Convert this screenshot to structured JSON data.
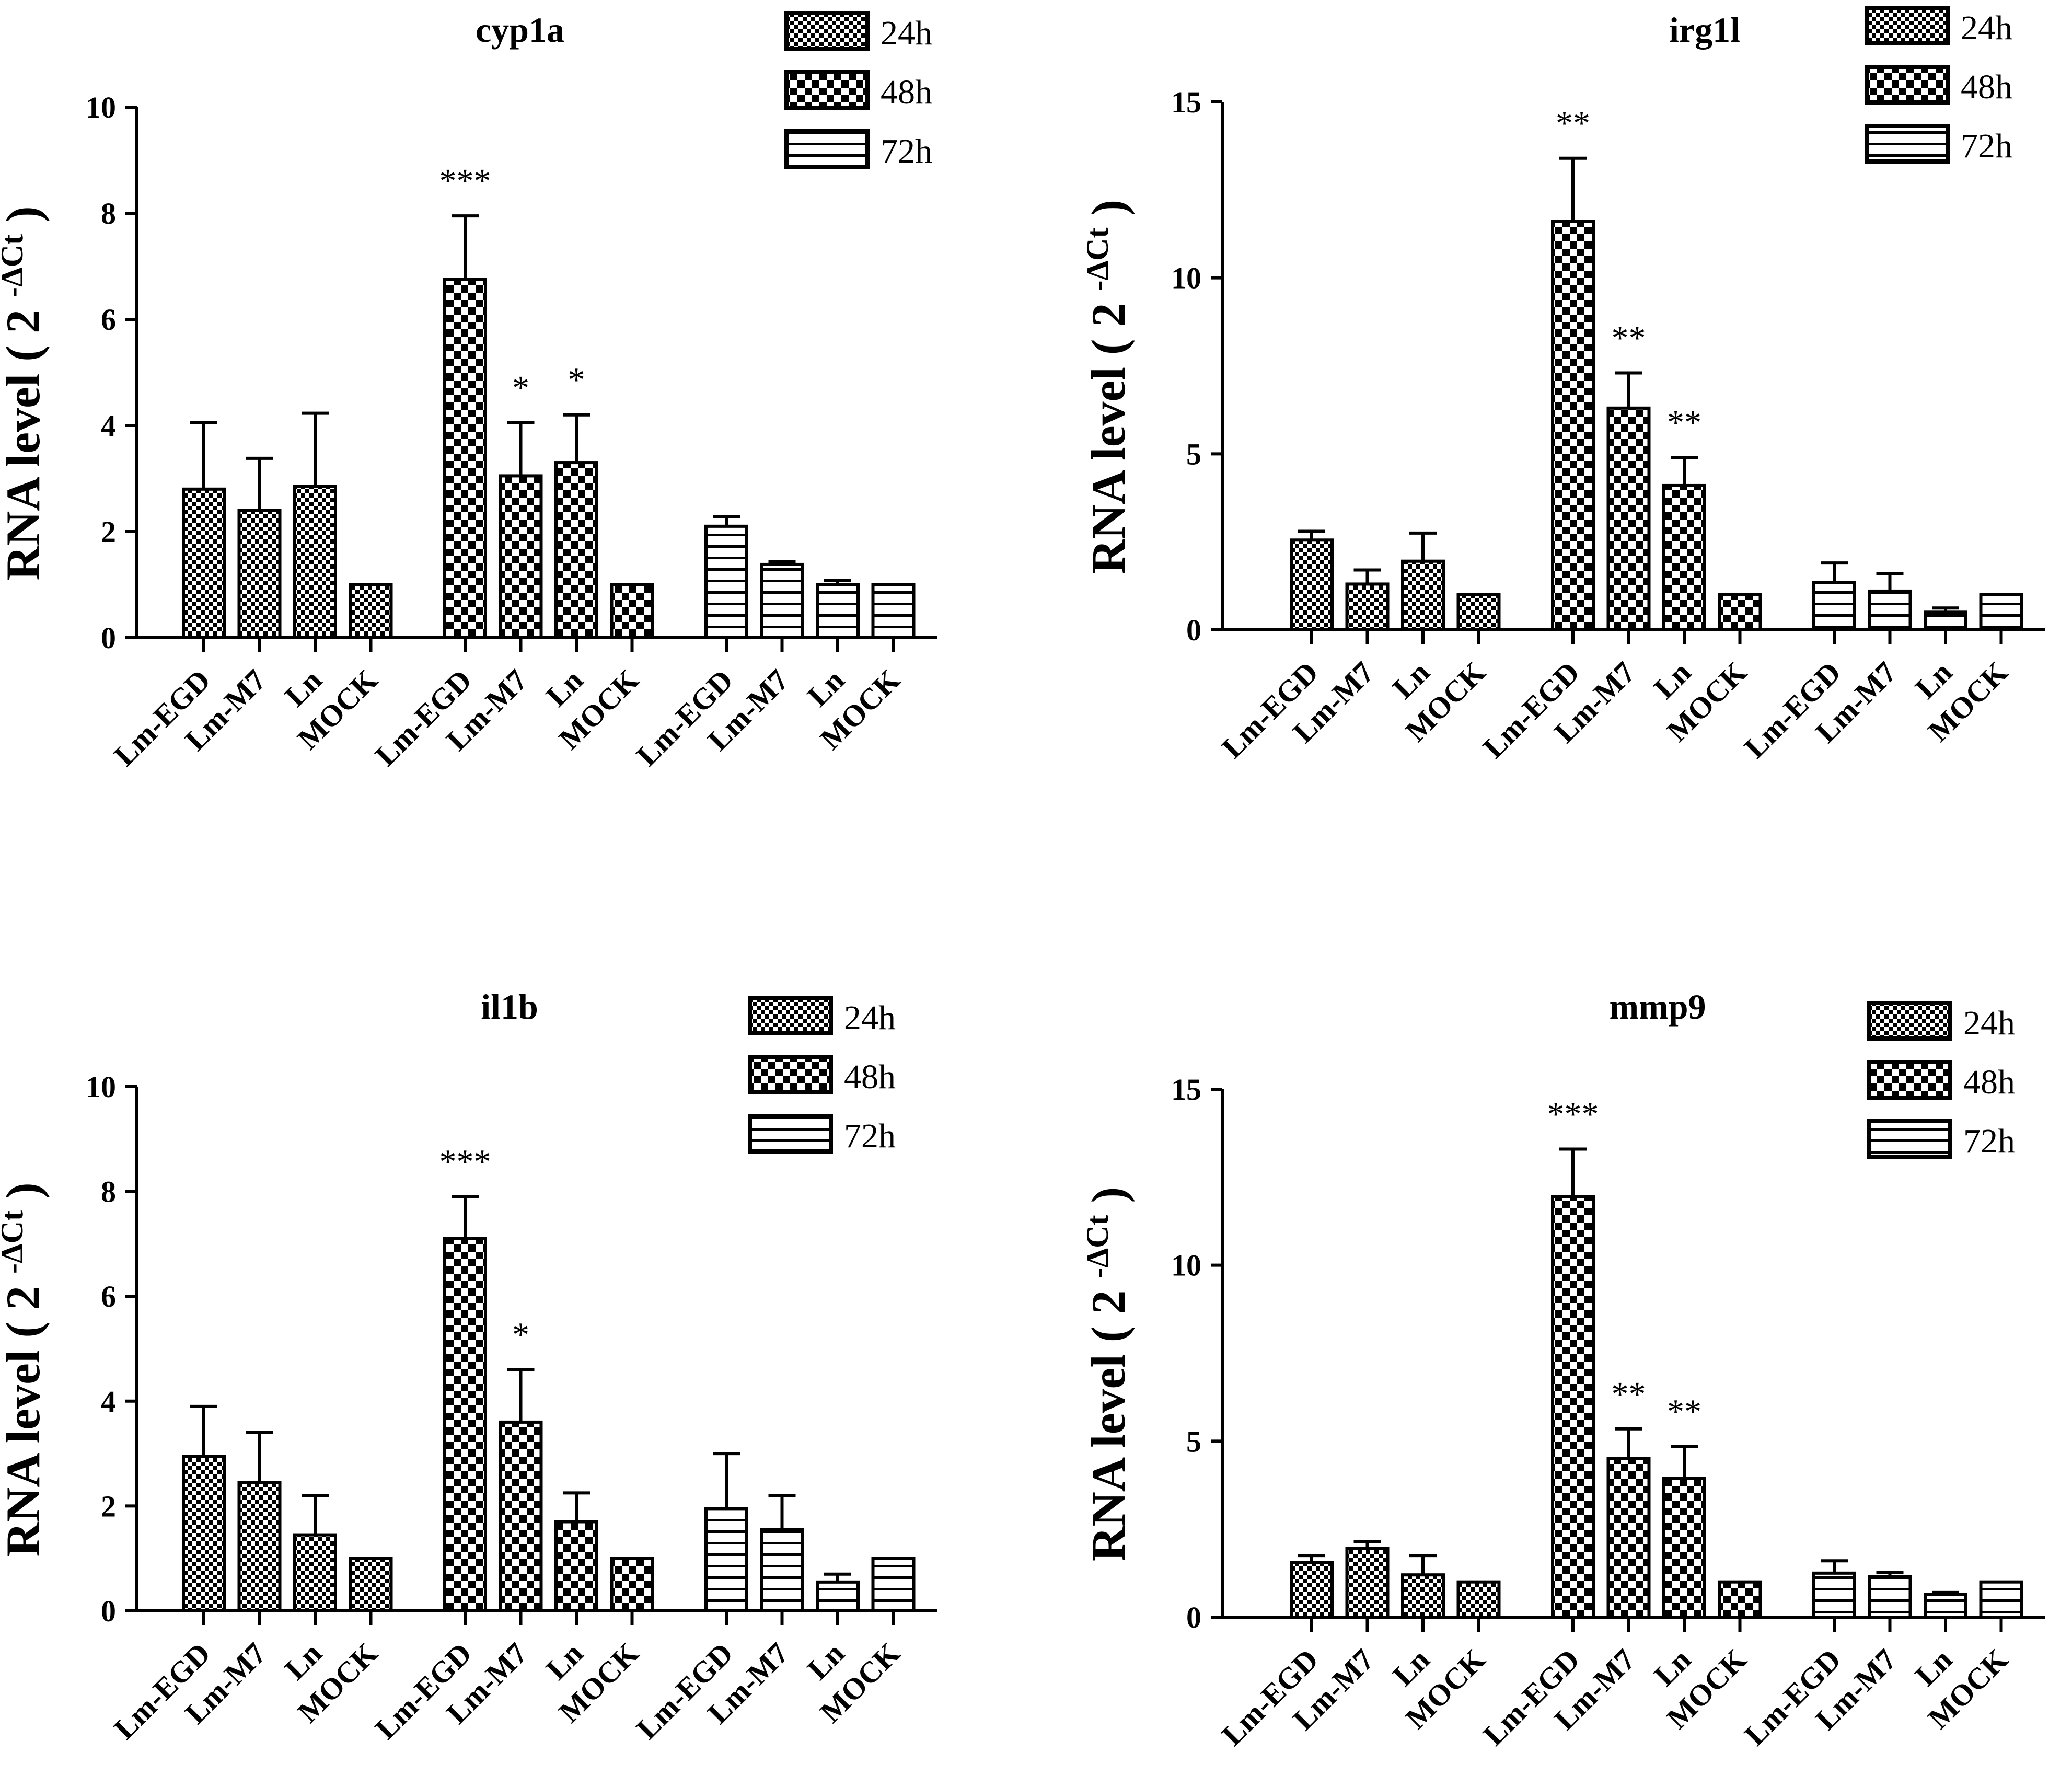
{
  "chart_data": [
    {
      "type": "bar",
      "title": "cyp1a",
      "ylabel": "RNA level ( 2",
      "ylabel_sup": "-ΔCt",
      "ylabel_close": ")",
      "ylim": [
        0,
        10
      ],
      "yticks": [
        0,
        2,
        4,
        6,
        8,
        10
      ],
      "categories": [
        "Lm-EGD",
        "Lm-M7",
        "Ln",
        "MOCK"
      ],
      "series": [
        {
          "name": "24h",
          "values": [
            2.8,
            2.4,
            2.85,
            1.0
          ],
          "errors": [
            1.25,
            0.98,
            1.38,
            0.0
          ],
          "sig": [
            "",
            "",
            "",
            ""
          ]
        },
        {
          "name": "48h",
          "values": [
            6.75,
            3.05,
            3.3,
            1.0
          ],
          "errors": [
            1.2,
            1.0,
            0.9,
            0.0
          ],
          "sig": [
            "***",
            "*",
            "*",
            ""
          ]
        },
        {
          "name": "72h",
          "values": [
            2.1,
            1.38,
            1.0,
            1.0
          ],
          "errors": [
            0.18,
            0.05,
            0.08,
            0.0
          ],
          "sig": [
            "",
            "",
            "",
            ""
          ]
        }
      ],
      "legend": [
        "24h",
        "48h",
        "72h"
      ]
    },
    {
      "type": "bar",
      "title": "irg1l",
      "ylabel": "RNA level ( 2",
      "ylabel_sup": "-ΔCt",
      "ylabel_close": ")",
      "ylim": [
        0,
        15
      ],
      "yticks": [
        0,
        5,
        10,
        15
      ],
      "categories": [
        "Lm-EGD",
        "Lm-M7",
        "Ln",
        "MOCK"
      ],
      "series": [
        {
          "name": "24h",
          "values": [
            2.55,
            1.3,
            1.95,
            1.0
          ],
          "errors": [
            0.25,
            0.4,
            0.8,
            0.0
          ],
          "sig": [
            "",
            "",
            "",
            ""
          ]
        },
        {
          "name": "48h",
          "values": [
            11.6,
            6.3,
            4.1,
            1.0
          ],
          "errors": [
            1.8,
            1.0,
            0.8,
            0.0
          ],
          "sig": [
            "**",
            "**",
            "**",
            ""
          ]
        },
        {
          "name": "72h",
          "values": [
            1.35,
            1.1,
            0.5,
            1.0
          ],
          "errors": [
            0.55,
            0.5,
            0.12,
            0.0
          ],
          "sig": [
            "",
            "",
            "",
            ""
          ]
        }
      ],
      "legend": [
        "24h",
        "48h",
        "72h"
      ]
    },
    {
      "type": "bar",
      "title": "il1b",
      "ylabel": "RNA level ( 2",
      "ylabel_sup": "-ΔCt",
      "ylabel_close": ")",
      "ylim": [
        0,
        10
      ],
      "yticks": [
        0,
        2,
        4,
        6,
        8,
        10
      ],
      "categories": [
        "Lm-EGD",
        "Lm-M7",
        "Ln",
        "MOCK"
      ],
      "series": [
        {
          "name": "24h",
          "values": [
            2.95,
            2.45,
            1.45,
            1.0
          ],
          "errors": [
            0.95,
            0.95,
            0.75,
            0.0
          ],
          "sig": [
            "",
            "",
            "",
            ""
          ]
        },
        {
          "name": "48h",
          "values": [
            7.1,
            3.6,
            1.7,
            1.0
          ],
          "errors": [
            0.8,
            1.0,
            0.55,
            0.0
          ],
          "sig": [
            "***",
            "*",
            "",
            ""
          ]
        },
        {
          "name": "72h",
          "values": [
            1.95,
            1.55,
            0.55,
            1.0
          ],
          "errors": [
            1.05,
            0.65,
            0.15,
            0.0
          ],
          "sig": [
            "",
            "",
            "",
            ""
          ]
        }
      ],
      "legend": [
        "24h",
        "48h",
        "72h"
      ]
    },
    {
      "type": "bar",
      "title": "mmp9",
      "ylabel": "RNA level ( 2",
      "ylabel_sup": "-ΔCt",
      "ylabel_close": ")",
      "ylim": [
        0,
        15
      ],
      "yticks": [
        0,
        5,
        10,
        15
      ],
      "categories": [
        "Lm-EGD",
        "Lm-M7",
        "Ln",
        "MOCK"
      ],
      "series": [
        {
          "name": "24h",
          "values": [
            1.55,
            1.95,
            1.2,
            1.0
          ],
          "errors": [
            0.2,
            0.2,
            0.55,
            0.0
          ],
          "sig": [
            "",
            "",
            "",
            ""
          ]
        },
        {
          "name": "48h",
          "values": [
            11.95,
            4.5,
            3.95,
            1.0
          ],
          "errors": [
            1.35,
            0.85,
            0.9,
            0.0
          ],
          "sig": [
            "***",
            "**",
            "**",
            ""
          ]
        },
        {
          "name": "72h",
          "values": [
            1.25,
            1.15,
            0.65,
            1.0
          ],
          "errors": [
            0.35,
            0.12,
            0.05,
            0.0
          ],
          "sig": [
            "",
            "",
            "",
            ""
          ]
        }
      ],
      "legend": [
        "24h",
        "48h",
        "72h"
      ]
    }
  ]
}
